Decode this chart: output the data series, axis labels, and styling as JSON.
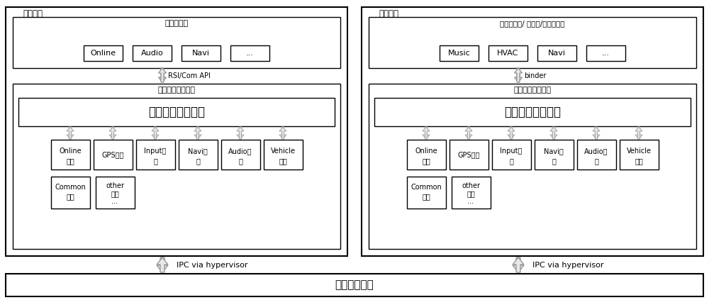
{
  "figsize": [
    10.0,
    4.23
  ],
  "dpi": 100,
  "bg_color": "#ffffff",
  "sys1_label": "第一系统",
  "sys2_label": "第二系统",
  "sys1_app_label": "第一应用端",
  "sys2_app_label": "第二应用端/ 框架端/硬件抽象层",
  "sys1_comm_label": "第一系统通信模块",
  "sys2_comm_label": "第二系统通信模块",
  "sys1_forward_label": "第一信息转发单元",
  "sys2_forward_label": "第二信息转发单元",
  "sys1_api_label": "RSI/Com API",
  "sys2_api_label": "binder",
  "ipc_label": "IPC via hypervisor",
  "vm_label": "虚拟机管理器",
  "sys1_app_items": [
    "Online",
    "Audio",
    "Navi",
    "..."
  ],
  "sys2_app_items": [
    "Music",
    "HVAC",
    "Navi",
    "..."
  ],
  "plugin_items_line1": [
    "Online",
    "GPS插件",
    "Input插",
    "Navi插",
    "Audio插",
    "Vehicle"
  ],
  "plugin_items_line2": [
    "插件",
    "",
    "件",
    "件",
    "件",
    "插件"
  ],
  "bottom_item1_line1": "Common",
  "bottom_item1_line2": "插件",
  "bottom_item2_line1": "other",
  "bottom_item2_line2": "插件",
  "bottom_item2_line3": "...",
  "box_color": "#ffffff",
  "box_edge": "#000000",
  "text_color": "#000000",
  "arrow_fc": "#e8e8e8",
  "arrow_ec": "#999999"
}
